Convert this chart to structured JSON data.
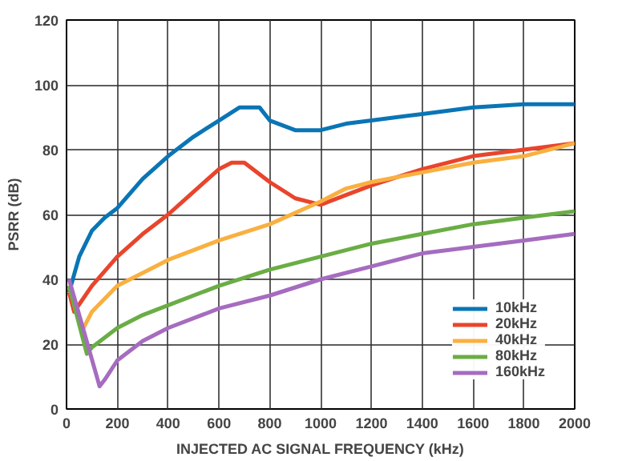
{
  "chart_data": {
    "type": "line",
    "xlabel": "INJECTED AC SIGNAL FREQUENCY (kHz)",
    "ylabel": "PSRR (dB)",
    "xlim": [
      0,
      2000
    ],
    "ylim": [
      0,
      120
    ],
    "xticks": [
      0,
      200,
      400,
      600,
      800,
      1000,
      1200,
      1400,
      1600,
      1800,
      2000
    ],
    "yticks": [
      0,
      20,
      40,
      60,
      80,
      100,
      120
    ],
    "grid": true,
    "legend": "bottom right",
    "line_style": "solid",
    "marker": "none",
    "series": [
      {
        "name": "10kHz",
        "color": "#0a75b5",
        "x": [
          10,
          50,
          100,
          150,
          200,
          300,
          400,
          500,
          600,
          680,
          760,
          800,
          900,
          1000,
          1100,
          1200,
          1400,
          1600,
          1800,
          2000
        ],
        "values": [
          36,
          47,
          55,
          59,
          62,
          71,
          78,
          84,
          89,
          93,
          93,
          89,
          86,
          86,
          88,
          89,
          91,
          93,
          94,
          94
        ]
      },
      {
        "name": "20kHz",
        "color": "#e8452c",
        "x": [
          10,
          30,
          100,
          200,
          300,
          400,
          500,
          600,
          650,
          700,
          800,
          900,
          1000,
          1100,
          1200,
          1400,
          1600,
          1800,
          2000
        ],
        "values": [
          36,
          30,
          38,
          47,
          54,
          60,
          67,
          74,
          76,
          76,
          70,
          65,
          63,
          66,
          69,
          74,
          78,
          80,
          82
        ]
      },
      {
        "name": "40kHz",
        "color": "#f9b041",
        "x": [
          10,
          60,
          100,
          200,
          300,
          400,
          600,
          800,
          1000,
          1100,
          1200,
          1400,
          1600,
          1800,
          2000
        ],
        "values": [
          38,
          24,
          30,
          38,
          42,
          46,
          52,
          57,
          64,
          68,
          70,
          73,
          76,
          78,
          82
        ]
      },
      {
        "name": "80kHz",
        "color": "#6aad45",
        "x": [
          10,
          80,
          100,
          200,
          300,
          400,
          600,
          800,
          1000,
          1200,
          1400,
          1600,
          1800,
          2000
        ],
        "values": [
          38,
          17,
          19,
          25,
          29,
          32,
          38,
          43,
          47,
          51,
          54,
          57,
          59,
          61
        ]
      },
      {
        "name": "160kHz",
        "color": "#a56cbf",
        "x": [
          10,
          130,
          150,
          200,
          300,
          400,
          600,
          800,
          1000,
          1200,
          1400,
          1600,
          1800,
          2000
        ],
        "values": [
          40,
          7,
          9,
          15,
          21,
          25,
          31,
          35,
          40,
          44,
          48,
          50,
          52,
          54
        ]
      }
    ]
  }
}
